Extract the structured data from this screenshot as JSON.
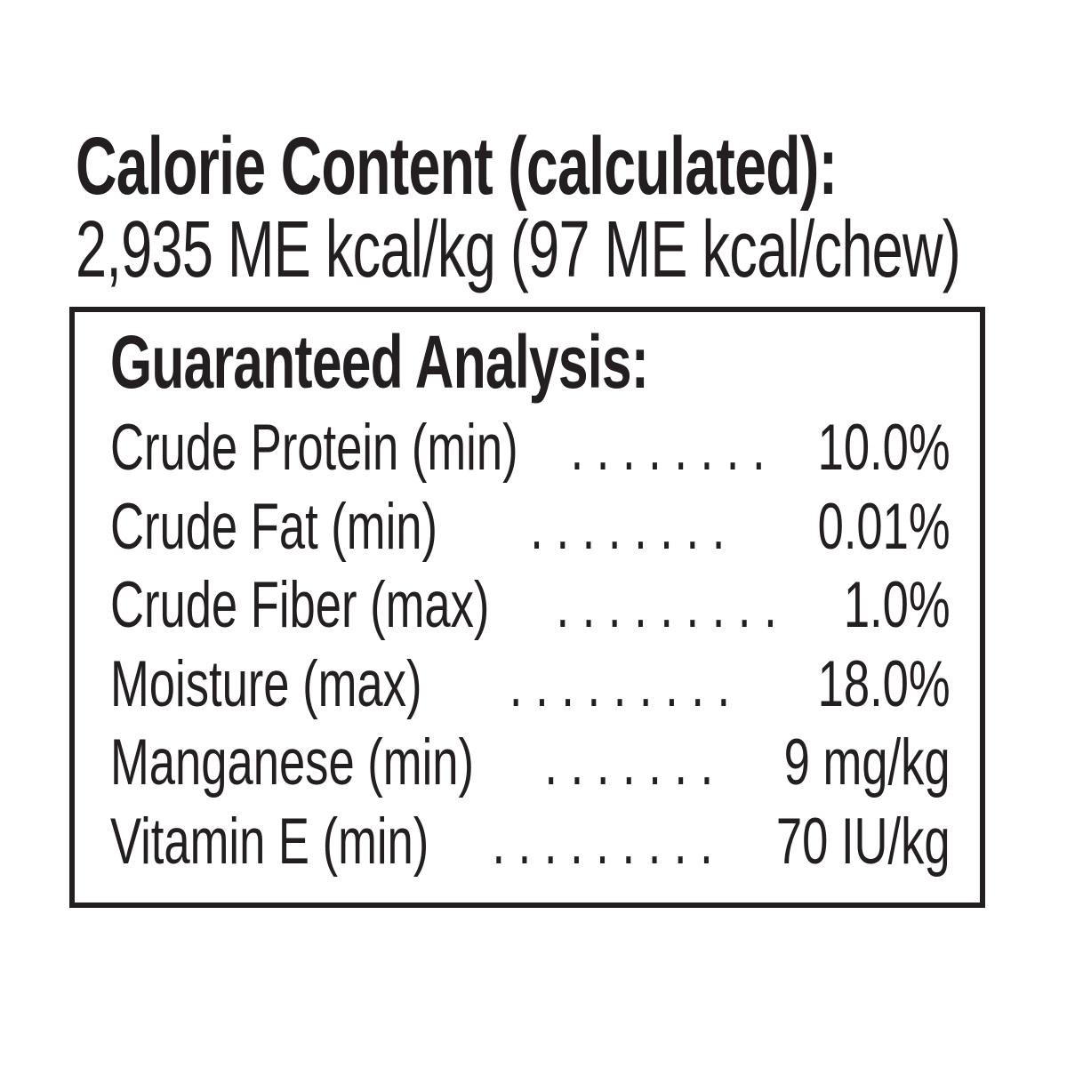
{
  "colors": {
    "text": "#231f20",
    "background": "#ffffff",
    "box_border": "#231f20"
  },
  "header": {
    "title": "Calorie Content (calculated):",
    "subtitle": "2,935 ME kcal/kg (97 ME kcal/chew)"
  },
  "analysis": {
    "title": "Guaranteed Analysis:",
    "rows": [
      {
        "label": "Crude Protein (min)",
        "dots": ". . . . . . . .",
        "value": "10.0%"
      },
      {
        "label": "Crude Fat (min)",
        "dots": ". . . . . . . .",
        "value": "0.01%"
      },
      {
        "label": "Crude Fiber (max)",
        "dots": ". . . . . . . . .",
        "value": "1.0%"
      },
      {
        "label": "Moisture (max)",
        "dots": ". . . . . . . . .",
        "value": "18.0%"
      },
      {
        "label": "Manganese (min)",
        "dots": ". . . . . . .",
        "value": "9 mg/kg"
      },
      {
        "label": "Vitamin E (min)",
        "dots": ". . . . . . . . .",
        "value": "70 IU/kg"
      }
    ]
  }
}
